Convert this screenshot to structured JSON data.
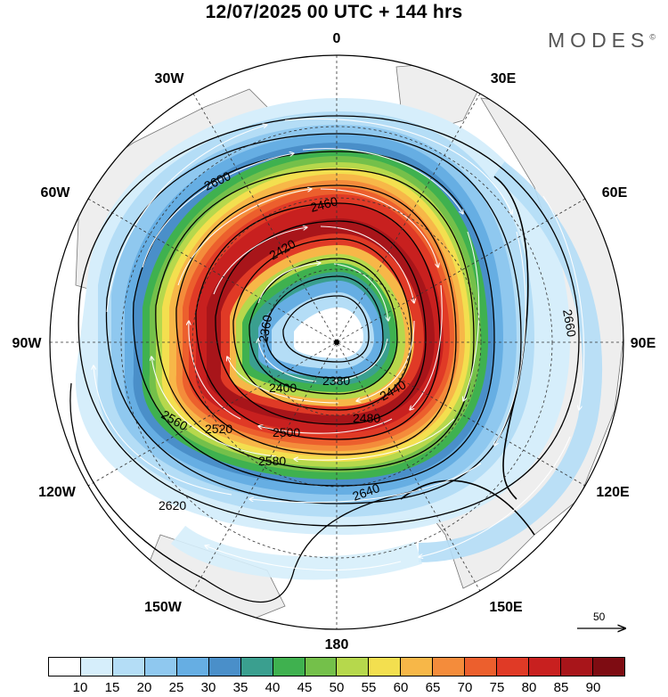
{
  "title": "12/07/2025  00 UTC  + 144 hrs",
  "brand": "MODES",
  "brand_mark": "©",
  "longitude_labels": [
    "0",
    "30E",
    "60E",
    "90E",
    "120E",
    "150E",
    "180",
    "150W",
    "120W",
    "90W",
    "60W",
    "30W"
  ],
  "contour_labels": [
    "2360",
    "2380",
    "2400",
    "2420",
    "2440",
    "2460",
    "2480",
    "2500",
    "2520",
    "2560",
    "2580",
    "2600",
    "2620",
    "2640",
    "2660"
  ],
  "reference_vector": "50",
  "colorbar": {
    "labels": [
      "10",
      "15",
      "20",
      "25",
      "30",
      "35",
      "40",
      "45",
      "50",
      "55",
      "60",
      "65",
      "70",
      "75",
      "80",
      "85",
      "90"
    ],
    "colors": [
      "#ffffff",
      "#d6eefb",
      "#b4ddf6",
      "#8fc8ef",
      "#66aee3",
      "#4a8fc9",
      "#3a9f8f",
      "#3fb14f",
      "#74c04a",
      "#b6d84c",
      "#f3df4f",
      "#f7b748",
      "#f48c3b",
      "#ec5f2d",
      "#e03a26",
      "#c8201f",
      "#a8151a",
      "#7e0c12"
    ]
  },
  "legend_colors": {
    "land": "#eeeeee",
    "coast": "#777777",
    "contour": "#000000",
    "streamline": "#ffffff"
  }
}
